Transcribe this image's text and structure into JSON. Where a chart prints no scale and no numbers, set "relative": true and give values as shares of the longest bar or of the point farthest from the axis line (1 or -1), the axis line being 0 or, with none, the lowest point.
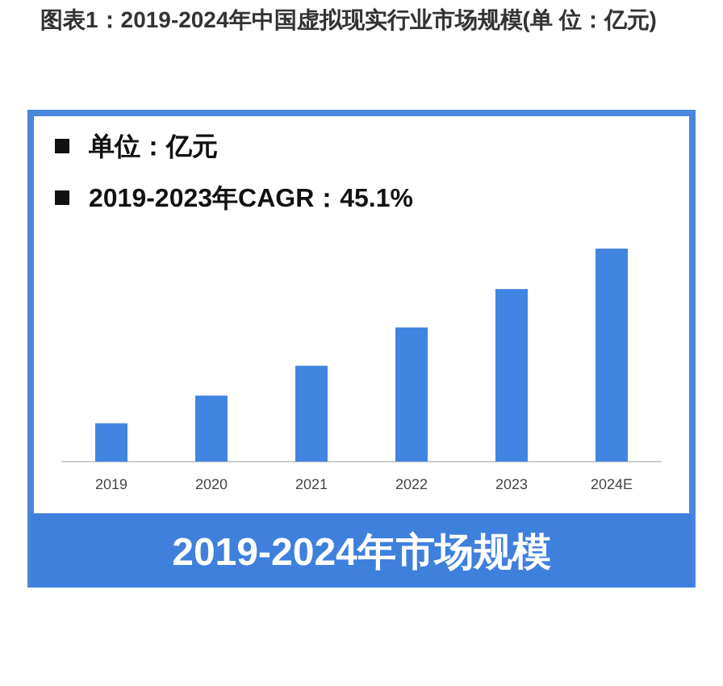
{
  "chart_data": {
    "type": "bar",
    "title": "图表1：2019-2024年中国虚拟现实行业市场规模(单 位：亿元)",
    "subtitle": "2019-2024年市场规模",
    "annotations": [
      "单位：亿元",
      "2019-2023年CAGR：45.1%"
    ],
    "categories": [
      "2019",
      "2020",
      "2021",
      "2022",
      "2023",
      "2024E"
    ],
    "values": [
      0.18,
      0.31,
      0.45,
      0.63,
      0.81,
      1
    ],
    "color": "#4285e0",
    "relative": true
  }
}
